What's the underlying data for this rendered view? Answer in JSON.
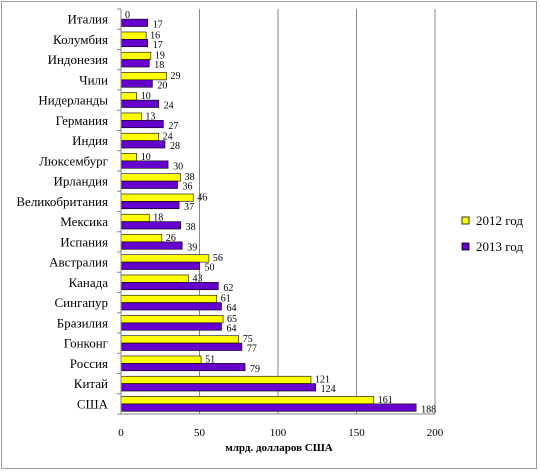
{
  "chart_data": {
    "type": "bar",
    "orientation": "horizontal",
    "categories": [
      "Италия",
      "Колумбия",
      "Индонезия",
      "Чили",
      "Нидерланды",
      "Германия",
      "Индия",
      "Люксембург",
      "Ирландия",
      "Великобритания",
      "Мексика",
      "Испания",
      "Австралия",
      "Канада",
      "Сингапур",
      "Бразилия",
      "Гонконг",
      "Россия",
      "Китай",
      "США"
    ],
    "series": [
      {
        "name": "2012 год",
        "color": "#ffff00",
        "values": [
          0,
          16,
          19,
          29,
          10,
          13,
          24,
          10,
          38,
          46,
          18,
          26,
          56,
          43,
          61,
          65,
          75,
          51,
          121,
          161
        ]
      },
      {
        "name": "2013 год",
        "color": "#6600cc",
        "values": [
          17,
          17,
          18,
          20,
          24,
          27,
          28,
          30,
          36,
          37,
          38,
          39,
          50,
          62,
          64,
          64,
          77,
          79,
          124,
          188
        ]
      }
    ],
    "xlabel": "млрд. долларов   США",
    "xlim": [
      0,
      200
    ],
    "xticks": [
      "0",
      "50",
      "100",
      "150",
      "200"
    ],
    "grid": "vertical",
    "legend_position": "right"
  }
}
